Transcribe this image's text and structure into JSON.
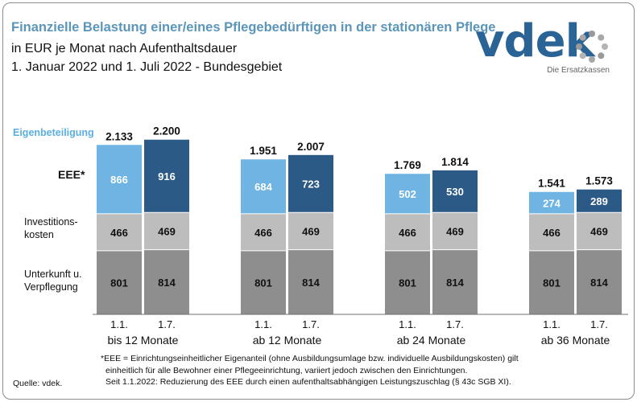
{
  "header": {
    "title": "Finanzielle Belastung einer/eines Pflegebedürftigen in der stationären Pflege",
    "subtitle_1": "in EUR je Monat nach Aufenthaltsdauer",
    "subtitle_2": "1. Januar 2022 und 1. Juli 2022 - Bundesgebiet"
  },
  "logo": {
    "text": "vdek",
    "tagline": "Die Ersatzkassen"
  },
  "row_labels": {
    "eigenbeteiligung": "Eigenbeteiligung",
    "eee": "EEE*",
    "invest_1": "Investitions-",
    "invest_2": "kosten",
    "unterkunft_1": "Unterkunft u.",
    "unterkunft_2": "Verpflegung"
  },
  "footnote": {
    "line1": "*EEE = Einrichtungseinheitlicher Eigenanteil (ohne Ausbildungsumlage bzw. individuelle Ausbildungskosten) gilt",
    "line2": "einheitlich für alle Bewohner einer Pflegeeinrichtung, variiert jedoch zwischen den Einrichtungen.",
    "line3": "Seit 1.1.2022: Reduzierung des EEE durch einen aufenthaltsabhängigen Leistungszuschlag (§ 43c SGB XI)."
  },
  "source": "Quelle: vdek.",
  "colors": {
    "unterkunft": "#8e8e8e",
    "invest": "#bdbdbd",
    "eee_jan": "#6fb4e2",
    "eee_jul": "#2c5a87",
    "title": "#5b95b8",
    "eig_label": "#5aaee0"
  },
  "chart_data": {
    "type": "bar",
    "stacked": true,
    "groups": [
      {
        "label": "bis 12 Monate",
        "bars": [
          {
            "date": "1.1.",
            "unterkunft": 801,
            "invest": 466,
            "eee": 866,
            "total": "2.133"
          },
          {
            "date": "1.7.",
            "unterkunft": 814,
            "invest": 469,
            "eee": 916,
            "total": "2.200"
          }
        ]
      },
      {
        "label": "ab 12 Monate",
        "bars": [
          {
            "date": "1.1.",
            "unterkunft": 801,
            "invest": 466,
            "eee": 684,
            "total": "1.951"
          },
          {
            "date": "1.7.",
            "unterkunft": 814,
            "invest": 469,
            "eee": 723,
            "total": "2.007"
          }
        ]
      },
      {
        "label": "ab 24 Monate",
        "bars": [
          {
            "date": "1.1.",
            "unterkunft": 801,
            "invest": 466,
            "eee": 502,
            "total": "1.769"
          },
          {
            "date": "1.7.",
            "unterkunft": 814,
            "invest": 469,
            "eee": 530,
            "total": "1.814"
          }
        ]
      },
      {
        "label": "ab 36 Monate",
        "bars": [
          {
            "date": "1.1.",
            "unterkunft": 801,
            "invest": 466,
            "eee": 274,
            "total": "1.541"
          },
          {
            "date": "1.7.",
            "unterkunft": 814,
            "invest": 469,
            "eee": 289,
            "total": "1.573"
          }
        ]
      }
    ],
    "series": [
      {
        "name": "Unterkunft u. Verpflegung"
      },
      {
        "name": "Investitionskosten"
      },
      {
        "name": "EEE*"
      }
    ]
  }
}
